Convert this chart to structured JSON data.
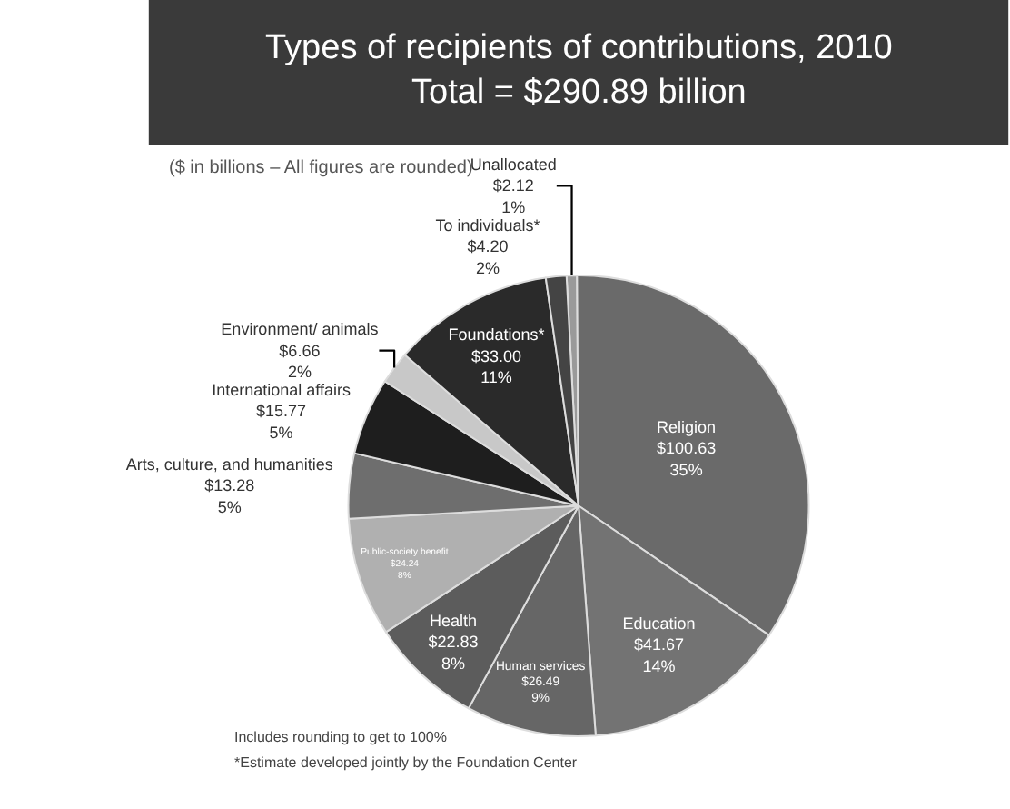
{
  "chart_data": {
    "type": "pie",
    "title": "Types of recipients of contributions, 2010\nTotal = $290.89 billion",
    "subtitle": "($ in billions – All figures are rounded)",
    "categories": [
      "Unallocated",
      "Religion",
      "Education",
      "Human services",
      "Health",
      "Public-society benefit",
      "Arts, culture, and humanities",
      "International affairs",
      "Environment/ animals",
      "Foundations*",
      "To individuals*"
    ],
    "values": [
      2.12,
      100.63,
      41.67,
      26.49,
      22.83,
      24.24,
      13.28,
      15.77,
      6.66,
      33.0,
      4.2
    ],
    "value_labels": [
      "$2.12\n1%",
      "$100.63\n35%",
      "$41.67\n14%",
      "$26.49\n9%",
      "$22.83\n8%",
      "$24.24\n8%",
      "$13.28\n5%",
      "$15.77\n5%",
      "$6.66\n2%",
      "$33.00\n11%",
      "$4.20\n2%"
    ],
    "colors": [
      "#9a9a9a",
      "#6a6a6a",
      "#737373",
      "#666666",
      "#5c5c5c",
      "#b0b0b0",
      "#6e6e6e",
      "#1e1e1e",
      "#c8c8c8",
      "#2a2a2a",
      "#444444"
    ],
    "legend": false,
    "annotations": [
      "Includes rounding to get to 100%",
      "*Estimate developed jointly by the Foundation Center"
    ]
  }
}
